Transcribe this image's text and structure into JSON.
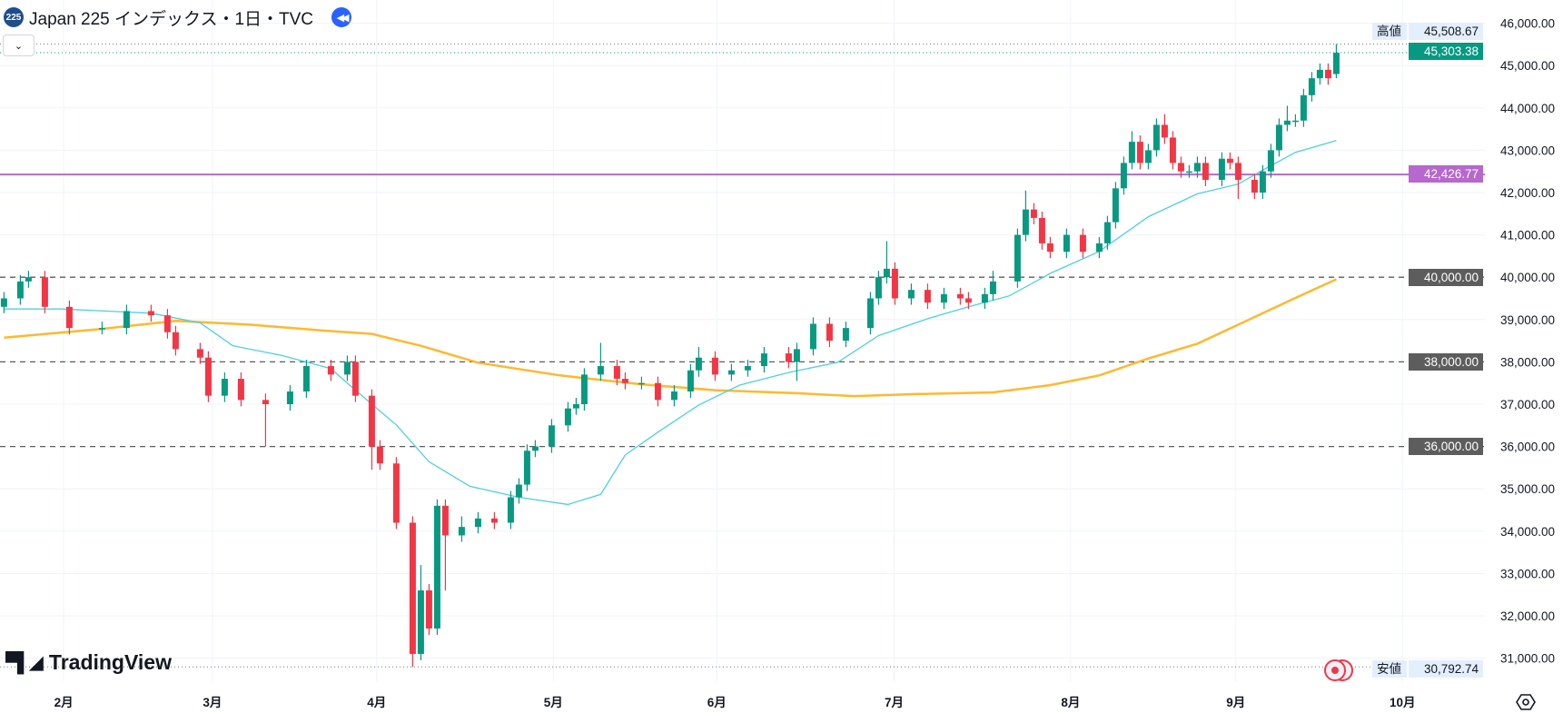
{
  "header": {
    "symbol_badge": "225",
    "title": "Japan 225 インデックス・1日・TVC"
  },
  "logo": {
    "text": "TradingView"
  },
  "colors": {
    "up": "#089981",
    "down": "#f23645",
    "ma_short": "#4dd0e1",
    "ma_long": "#ffb82e",
    "purple_line": "#b668cc",
    "grid": "#f0f3fa",
    "dashed_label_bg": "#5d5d5d"
  },
  "price_labels": {
    "high_tag": "高値",
    "high_value": "45,508.67",
    "last_value": "45,303.38",
    "purple_value": "42,426.77",
    "low_tag": "安値",
    "low_value": "30,792.74",
    "level_40000": "40,000.00",
    "level_38000": "38,000.00",
    "level_36000": "36,000.00"
  },
  "chart_data": {
    "type": "candlestick",
    "title": "Japan 225 インデックス・1日・TVC",
    "ylim": [
      30700,
      46100
    ],
    "high": 45508.67,
    "low": 30792.74,
    "last": 45303.38,
    "horizontal_levels": [
      42426.77,
      40000,
      38000,
      36000
    ],
    "y_ticks": [
      "31,000.00",
      "32,000.00",
      "33,000.00",
      "34,000.00",
      "35,000.00",
      "36,000.00",
      "37,000.00",
      "38,000.00",
      "39,000.00",
      "40,000.00",
      "41,000.00",
      "42,000.00",
      "43,000.00",
      "44,000.00",
      "45,000.00",
      "46,000.00"
    ],
    "y_tick_values": [
      31000,
      32000,
      33000,
      34000,
      35000,
      36000,
      37000,
      38000,
      39000,
      40000,
      41000,
      42000,
      43000,
      44000,
      45000,
      46000
    ],
    "x_ticks": [
      {
        "label": "2月",
        "day": 7.3
      },
      {
        "label": "3月",
        "day": 25.5
      },
      {
        "label": "4月",
        "day": 45.6
      },
      {
        "label": "5月",
        "day": 67.2
      },
      {
        "label": "6月",
        "day": 87.2
      },
      {
        "label": "7月",
        "day": 108.9
      },
      {
        "label": "8月",
        "day": 130.5
      },
      {
        "label": "9月",
        "day": 150.7
      },
      {
        "label": "10月",
        "day": 171.1
      }
    ],
    "candle_fields": [
      "day",
      "open",
      "high",
      "low",
      "close"
    ],
    "candles": [
      [
        0,
        39300,
        39650,
        39150,
        39500
      ],
      [
        2,
        39500,
        40050,
        39350,
        39900
      ],
      [
        3,
        39900,
        40150,
        39750,
        40000
      ],
      [
        5,
        40000,
        40150,
        39150,
        39300
      ],
      [
        8,
        39300,
        39450,
        38650,
        38800
      ],
      [
        12,
        38800,
        38950,
        38650,
        38800
      ],
      [
        15,
        38800,
        39350,
        38650,
        39200
      ],
      [
        18,
        39200,
        39350,
        38950,
        39100
      ],
      [
        20,
        39100,
        39250,
        38550,
        38700
      ],
      [
        21,
        38700,
        38850,
        38150,
        38300
      ],
      [
        24,
        38300,
        38450,
        37950,
        38100
      ],
      [
        25,
        38100,
        38250,
        37050,
        37200
      ],
      [
        27,
        37200,
        37750,
        37050,
        37600
      ],
      [
        29,
        37600,
        37750,
        36950,
        37100
      ],
      [
        32,
        37100,
        37250,
        36000,
        37000
      ],
      [
        35,
        37000,
        37450,
        36850,
        37300
      ],
      [
        37,
        37300,
        38050,
        37150,
        37900
      ],
      [
        40,
        37900,
        38050,
        37550,
        37700
      ],
      [
        42,
        37700,
        38150,
        37550,
        38000
      ],
      [
        43,
        38000,
        38150,
        37050,
        37200
      ],
      [
        45,
        37200,
        37350,
        35450,
        36000
      ],
      [
        46,
        36000,
        36150,
        35450,
        35600
      ],
      [
        48,
        35600,
        35750,
        34050,
        34200
      ],
      [
        50,
        34200,
        34350,
        30793,
        31100
      ],
      [
        51,
        31100,
        33200,
        30950,
        32600
      ],
      [
        52,
        32600,
        32750,
        31550,
        31700
      ],
      [
        53,
        31700,
        34750,
        31550,
        34600
      ],
      [
        54,
        34600,
        34750,
        32600,
        33900
      ],
      [
        56,
        33900,
        34350,
        33750,
        34100
      ],
      [
        58,
        34100,
        34450,
        33950,
        34300
      ],
      [
        60,
        34300,
        34450,
        34050,
        34200
      ],
      [
        62,
        34200,
        34950,
        34050,
        34800
      ],
      [
        63,
        34800,
        35250,
        34650,
        35100
      ],
      [
        64,
        35100,
        36050,
        34950,
        35900
      ],
      [
        65,
        35900,
        36150,
        35750,
        36000
      ],
      [
        67,
        36000,
        36650,
        35850,
        36500
      ],
      [
        69,
        36500,
        37050,
        36350,
        36900
      ],
      [
        70,
        36900,
        37150,
        36750,
        37000
      ],
      [
        71,
        37000,
        37850,
        36850,
        37700
      ],
      [
        73,
        37700,
        38450,
        37550,
        37900
      ],
      [
        75,
        37900,
        38050,
        37450,
        37600
      ],
      [
        76,
        37600,
        37750,
        37350,
        37500
      ],
      [
        78,
        37500,
        37650,
        37350,
        37500
      ],
      [
        80,
        37500,
        37650,
        36950,
        37100
      ],
      [
        82,
        37100,
        37450,
        36950,
        37300
      ],
      [
        84,
        37300,
        37950,
        37150,
        37800
      ],
      [
        85,
        37800,
        38350,
        37650,
        38100
      ],
      [
        87,
        38100,
        38250,
        37550,
        37700
      ],
      [
        89,
        37700,
        37950,
        37550,
        37800
      ],
      [
        91,
        37800,
        38050,
        37650,
        37900
      ],
      [
        93,
        37900,
        38350,
        37750,
        38200
      ],
      [
        96,
        38200,
        38350,
        37850,
        38000
      ],
      [
        97,
        38000,
        38450,
        37550,
        38300
      ],
      [
        99,
        38300,
        39050,
        38150,
        38900
      ],
      [
        101,
        38900,
        39050,
        38350,
        38500
      ],
      [
        103,
        38500,
        38950,
        38350,
        38800
      ],
      [
        106,
        38800,
        39650,
        38650,
        39500
      ],
      [
        107,
        39500,
        40150,
        39350,
        40000
      ],
      [
        108,
        40000,
        40850,
        39850,
        40200
      ],
      [
        109,
        40200,
        40350,
        39350,
        39500
      ],
      [
        111,
        39500,
        39850,
        39350,
        39700
      ],
      [
        113,
        39700,
        39850,
        39250,
        39400
      ],
      [
        115,
        39400,
        39750,
        39250,
        39600
      ],
      [
        117,
        39600,
        39750,
        39350,
        39500
      ],
      [
        118,
        39500,
        39650,
        39250,
        39400
      ],
      [
        120,
        39400,
        39750,
        39250,
        39600
      ],
      [
        121,
        39600,
        40150,
        39450,
        39900
      ],
      [
        124,
        39900,
        41150,
        39750,
        41000
      ],
      [
        125,
        41000,
        42050,
        40850,
        41600
      ],
      [
        126,
        41600,
        41750,
        41250,
        41400
      ],
      [
        127,
        41400,
        41550,
        40650,
        40800
      ],
      [
        128,
        40800,
        40950,
        40450,
        40600
      ],
      [
        130,
        40600,
        41150,
        40450,
        41000
      ],
      [
        132,
        41000,
        41150,
        40450,
        40600
      ],
      [
        134,
        40600,
        40950,
        40450,
        40800
      ],
      [
        135,
        40800,
        41450,
        40650,
        41300
      ],
      [
        136,
        41300,
        42250,
        41150,
        42100
      ],
      [
        137,
        42100,
        42850,
        41950,
        42700
      ],
      [
        138,
        42700,
        43450,
        42550,
        43200
      ],
      [
        139,
        43200,
        43350,
        42550,
        42700
      ],
      [
        140,
        42700,
        43150,
        42550,
        43000
      ],
      [
        141,
        43000,
        43750,
        42850,
        43600
      ],
      [
        142,
        43600,
        43850,
        43150,
        43300
      ],
      [
        143,
        43300,
        43450,
        42550,
        42700
      ],
      [
        144,
        42700,
        42850,
        42350,
        42500
      ],
      [
        145,
        42500,
        42650,
        42350,
        42500
      ],
      [
        146,
        42500,
        42850,
        42350,
        42700
      ],
      [
        147,
        42700,
        42850,
        42150,
        42300
      ],
      [
        149,
        42300,
        42950,
        42150,
        42800
      ],
      [
        150,
        42800,
        42950,
        42550,
        42700
      ],
      [
        151,
        42700,
        42850,
        41850,
        42300
      ],
      [
        153,
        42300,
        42450,
        41850,
        42000
      ],
      [
        154,
        42000,
        42650,
        41850,
        42500
      ],
      [
        155,
        42500,
        43150,
        42350,
        43000
      ],
      [
        156,
        43000,
        43750,
        42850,
        43600
      ],
      [
        157,
        43600,
        44050,
        43450,
        43700
      ],
      [
        158,
        43700,
        43850,
        43550,
        43700
      ],
      [
        159,
        43700,
        44450,
        43550,
        44300
      ],
      [
        160,
        44300,
        44850,
        44150,
        44700
      ],
      [
        161,
        44700,
        45050,
        44550,
        44900
      ],
      [
        162,
        44900,
        45050,
        44550,
        44700
      ],
      [
        163,
        44800,
        45509,
        44700,
        45303
      ]
    ],
    "ma_short": [
      [
        0,
        39250
      ],
      [
        7,
        39250
      ],
      [
        18,
        39150
      ],
      [
        24,
        38920
      ],
      [
        28,
        38380
      ],
      [
        34,
        38150
      ],
      [
        40,
        37840
      ],
      [
        43,
        37330
      ],
      [
        48,
        36510
      ],
      [
        52,
        35640
      ],
      [
        57,
        35060
      ],
      [
        63,
        34800
      ],
      [
        69,
        34630
      ],
      [
        73,
        34870
      ],
      [
        76,
        35800
      ],
      [
        80,
        36340
      ],
      [
        85,
        36980
      ],
      [
        90,
        37450
      ],
      [
        96,
        37750
      ],
      [
        102,
        37990
      ],
      [
        107,
        38620
      ],
      [
        113,
        39020
      ],
      [
        118,
        39300
      ],
      [
        123,
        39560
      ],
      [
        128,
        40090
      ],
      [
        134,
        40610
      ],
      [
        140,
        41430
      ],
      [
        146,
        41970
      ],
      [
        151,
        42200
      ],
      [
        154,
        42530
      ],
      [
        158,
        42950
      ],
      [
        163,
        43230
      ]
    ],
    "ma_long": [
      [
        0,
        38570
      ],
      [
        12,
        38780
      ],
      [
        21,
        38970
      ],
      [
        30,
        38880
      ],
      [
        39,
        38740
      ],
      [
        45,
        38660
      ],
      [
        51,
        38380
      ],
      [
        58,
        37980
      ],
      [
        68,
        37680
      ],
      [
        78,
        37470
      ],
      [
        87,
        37330
      ],
      [
        97,
        37260
      ],
      [
        104,
        37190
      ],
      [
        112,
        37240
      ],
      [
        121,
        37280
      ],
      [
        128,
        37450
      ],
      [
        134,
        37680
      ],
      [
        140,
        38080
      ],
      [
        146,
        38430
      ],
      [
        152,
        38970
      ],
      [
        158,
        39510
      ],
      [
        163,
        39950
      ]
    ]
  }
}
